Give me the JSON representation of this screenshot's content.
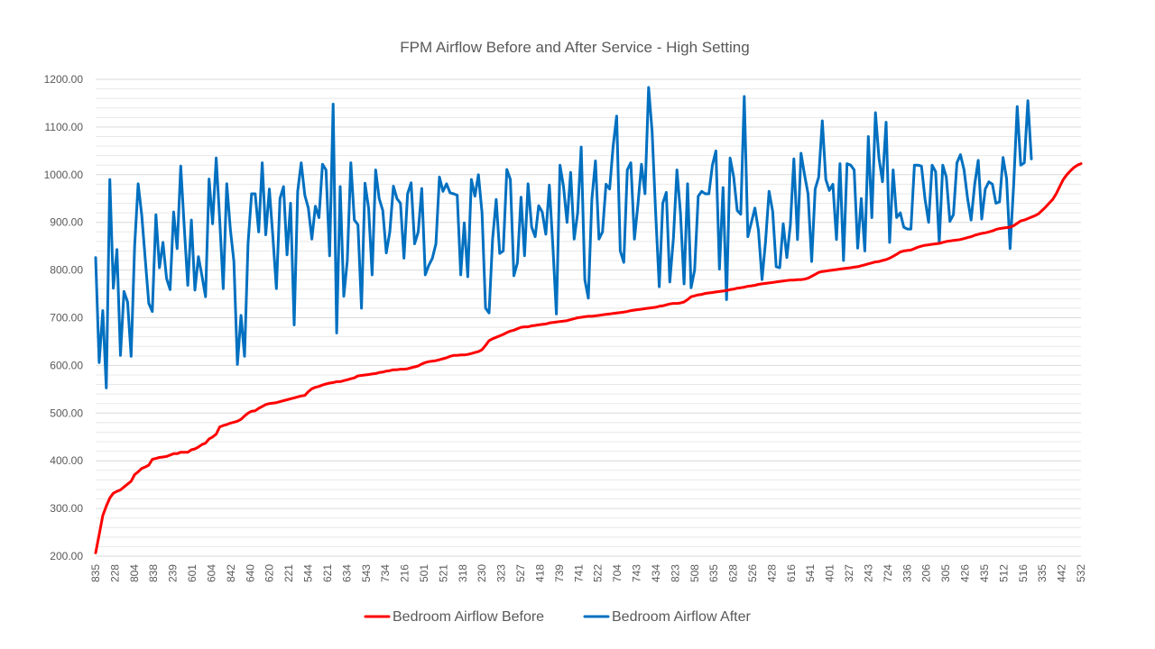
{
  "chart_data": {
    "type": "line",
    "title": "FPM Airflow Before and After Service - High Setting",
    "xlabel": "",
    "ylabel": "",
    "ylim": [
      200,
      1200
    ],
    "y_ticks": [
      "200.00",
      "300.00",
      "400.00",
      "500.00",
      "600.00",
      "700.00",
      "800.00",
      "900.00",
      "1000.00",
      "1100.00",
      "1200.00"
    ],
    "grid": "horizontal",
    "legend_position": "bottom",
    "x_tick_labels": [
      "835",
      "228",
      "804",
      "838",
      "239",
      "601",
      "604",
      "842",
      "640",
      "620",
      "221",
      "544",
      "621",
      "634",
      "543",
      "734",
      "216",
      "501",
      "521",
      "318",
      "230",
      "323",
      "527",
      "418",
      "739",
      "741",
      "522",
      "704",
      "743",
      "434",
      "823",
      "508",
      "635",
      "628",
      "526",
      "428",
      "616",
      "541",
      "401",
      "327",
      "243",
      "724",
      "336",
      "206",
      "305",
      "426",
      "435",
      "512",
      "516",
      "335",
      "442",
      "532"
    ],
    "colors": {
      "before": "#ff0000",
      "after": "#0070c0"
    },
    "series": [
      {
        "name": "Bedroom Airflow Before",
        "values": [
          207,
          245,
          285,
          305,
          322,
          332,
          336,
          339,
          345,
          351,
          357,
          371,
          377,
          384,
          387,
          391,
          403,
          405,
          407,
          408,
          409,
          412,
          415,
          415,
          418,
          418,
          418,
          423,
          425,
          429,
          434,
          437,
          446,
          450,
          456,
          471,
          474,
          476,
          479,
          481,
          483,
          487,
          494,
          500,
          504,
          505,
          510,
          514,
          518,
          520,
          521,
          522,
          524,
          526,
          528,
          530,
          532,
          534,
          536,
          537,
          545,
          551,
          554,
          556,
          559,
          561,
          563,
          564,
          566,
          566,
          568,
          570,
          572,
          574,
          578,
          579,
          580,
          581,
          582,
          583,
          585,
          586,
          588,
          589,
          591,
          591,
          592,
          592,
          593,
          595,
          597,
          599,
          603,
          606,
          608,
          609,
          610,
          612,
          614,
          616,
          619,
          621,
          621,
          622,
          622,
          623,
          625,
          627,
          629,
          633,
          642,
          652,
          656,
          659,
          662,
          665,
          669,
          672,
          674,
          677,
          680,
          681,
          681,
          683,
          684,
          685,
          686,
          687,
          689,
          690,
          691,
          692,
          693,
          694,
          696,
          698,
          700,
          701,
          702,
          703,
          703,
          704,
          705,
          706,
          707,
          708,
          709,
          710,
          711,
          712,
          713,
          715,
          716,
          717,
          718,
          719,
          720,
          721,
          722,
          724,
          725,
          727,
          729,
          730,
          730,
          731,
          733,
          738,
          744,
          746,
          748,
          749,
          751,
          752,
          753,
          754,
          755,
          756,
          757,
          759,
          760,
          762,
          763,
          764,
          766,
          767,
          768,
          770,
          771,
          772,
          773,
          774,
          775,
          776,
          777,
          778,
          779,
          779,
          780,
          780,
          781,
          783,
          787,
          791,
          795,
          797,
          798,
          799,
          800,
          801,
          802,
          803,
          804,
          805,
          806,
          807,
          809,
          811,
          813,
          815,
          817,
          818,
          820,
          822,
          825,
          829,
          833,
          838,
          840,
          841,
          842,
          845,
          848,
          850,
          852,
          853,
          854,
          855,
          856,
          858,
          860,
          861,
          862,
          863,
          864,
          866,
          868,
          870,
          873,
          875,
          877,
          878,
          880,
          882,
          885,
          887,
          888,
          889,
          890,
          893,
          898,
          903,
          905,
          908,
          911,
          914,
          918,
          925,
          932,
          940,
          948,
          960,
          975,
          990,
          1000,
          1008,
          1015,
          1020,
          1023
        ]
      },
      {
        "name": "Bedroom Airflow After",
        "values": [
          826,
          606,
          715,
          553,
          990,
          762,
          843,
          621,
          755,
          733,
          619,
          850,
          981,
          915,
          822,
          730,
          713,
          916,
          805,
          858,
          782,
          759,
          922,
          845,
          1018,
          890,
          768,
          905,
          758,
          828,
          788,
          744,
          991,
          897,
          1035,
          905,
          761,
          981,
          885,
          818,
          602,
          705,
          619,
          856,
          960,
          960,
          880,
          1025,
          874,
          970,
          870,
          761,
          950,
          975,
          832,
          940,
          685,
          965,
          1025,
          957,
          930,
          865,
          934,
          910,
          1022,
          1010,
          830,
          1148,
          668,
          975,
          745,
          820,
          1025,
          905,
          895,
          720,
          982,
          930,
          790,
          1010,
          950,
          925,
          836,
          880,
          976,
          950,
          940,
          825,
          960,
          983,
          855,
          880,
          971,
          790,
          810,
          825,
          855,
          995,
          965,
          981,
          962,
          960,
          957,
          790,
          899,
          786,
          990,
          955,
          1000,
          920,
          720,
          710,
          865,
          948,
          835,
          840,
          1011,
          990,
          788,
          815,
          953,
          830,
          981,
          890,
          870,
          935,
          922,
          875,
          978,
          850,
          708,
          1020,
          975,
          900,
          1005,
          865,
          920,
          1058,
          780,
          741,
          948,
          1029,
          865,
          880,
          980,
          970,
          1060,
          1123,
          840,
          816,
          1010,
          1025,
          865,
          938,
          1022,
          960,
          1183,
          1090,
          920,
          765,
          940,
          963,
          775,
          867,
          1010,
          920,
          771,
          981,
          763,
          800,
          955,
          965,
          960,
          960,
          1020,
          1050,
          802,
          973,
          738,
          1035,
          995,
          925,
          917,
          1164,
          870,
          900,
          930,
          884,
          780,
          860,
          965,
          923,
          807,
          805,
          897,
          826,
          895,
          1033,
          864,
          1045,
          1000,
          960,
          818,
          970,
          995,
          1113,
          990,
          967,
          980,
          864,
          1023,
          820,
          1023,
          1020,
          1010,
          846,
          950,
          840,
          1080,
          910,
          1130,
          1035,
          985,
          1110,
          858,
          1010,
          910,
          920,
          890,
          886,
          886,
          1020,
          1020,
          1018,
          948,
          900,
          1020,
          1006,
          857,
          1020,
          995,
          902,
          916,
          1025,
          1042,
          1010,
          950,
          905,
          980,
          1030,
          907,
          970,
          985,
          980,
          940,
          943,
          1036,
          992,
          845,
          980,
          1143,
          1020,
          1025,
          1155,
          1033
        ]
      }
    ]
  }
}
